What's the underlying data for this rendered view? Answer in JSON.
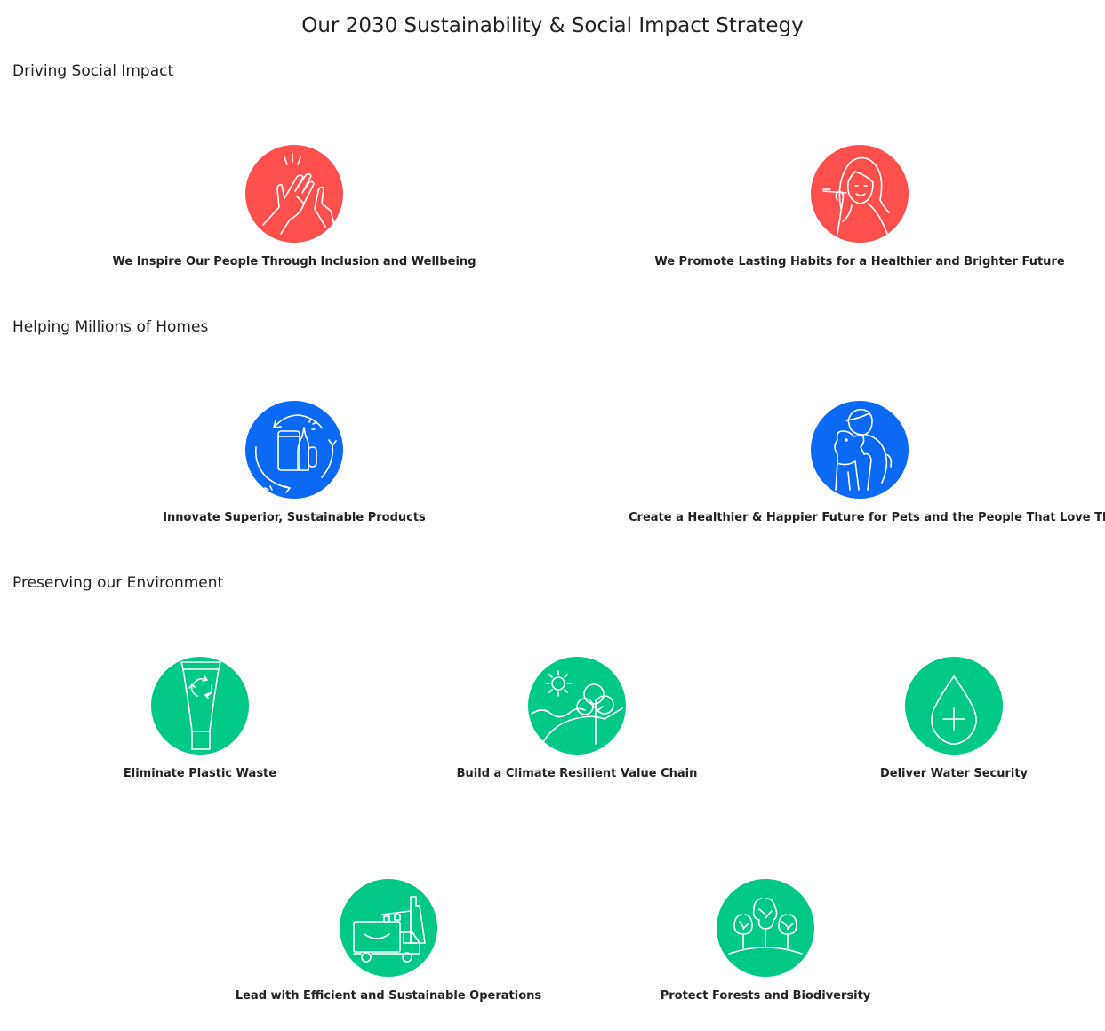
{
  "page": {
    "title": "Our 2030 Sustainability & Social Impact Strategy"
  },
  "colors": {
    "social": "#ff504d",
    "homes": "#0a6af5",
    "environment": "#00c987",
    "text": "#222222"
  },
  "sections": [
    {
      "heading": "Driving Social Impact",
      "items": [
        {
          "label": "We Inspire Our People Through Inclusion and Wellbeing",
          "icon": "clapping-hands-icon"
        },
        {
          "label": "We Promote Lasting Habits for a Healthier and Brighter Future",
          "icon": "child-brushing-teeth-icon"
        }
      ]
    },
    {
      "heading": "Helping Millions of Homes",
      "items": [
        {
          "label": "Innovate Superior, Sustainable Products",
          "icon": "recycling-products-icon"
        },
        {
          "label": "Create a Healthier & Happier Future for Pets and the People That Love Them",
          "icon": "person-hugging-pet-icon"
        }
      ]
    },
    {
      "heading": "Preserving our Environment",
      "items": [
        {
          "label": "Eliminate Plastic Waste",
          "icon": "recyclable-tube-icon"
        },
        {
          "label": "Build a Climate Resilient Value Chain",
          "icon": "sun-landscape-tree-icon"
        },
        {
          "label": "Deliver Water Security",
          "icon": "water-drop-icon"
        },
        {
          "label": "Lead with Efficient and Sustainable Operations",
          "icon": "truck-factory-icon"
        },
        {
          "label": "Protect Forests and Biodiversity",
          "icon": "forest-trees-icon"
        }
      ]
    }
  ]
}
